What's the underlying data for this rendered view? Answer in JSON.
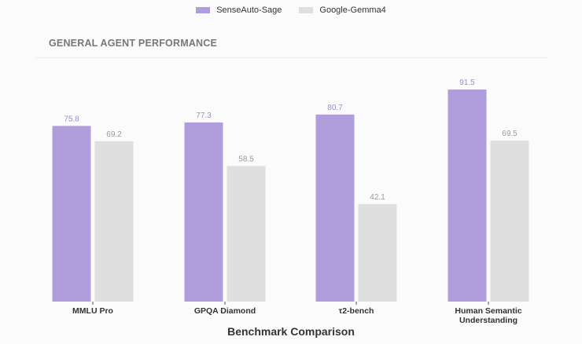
{
  "chart_data": {
    "type": "bar",
    "title": "GENERAL AGENT PERFORMANCE",
    "xlabel": "Benchmark Comparison",
    "ylabel": "",
    "categories": [
      "MMLU Pro",
      "GPQA Diamond",
      "τ2-bench",
      "Human Semantic Understanding"
    ],
    "series": [
      {
        "name": "SenseAuto-Sage",
        "values": [
          75.8,
          77.3,
          80.7,
          91.5
        ],
        "color": "#b09edc"
      },
      {
        "name": "Google-Gemma4",
        "values": [
          69.2,
          58.5,
          42.1,
          69.5
        ],
        "color": "#e0dfdf"
      }
    ],
    "ylim": [
      0,
      100
    ],
    "grid": false,
    "legend_position": "top-center",
    "label_colors": [
      "#9c8bd0",
      "#999999"
    ]
  }
}
